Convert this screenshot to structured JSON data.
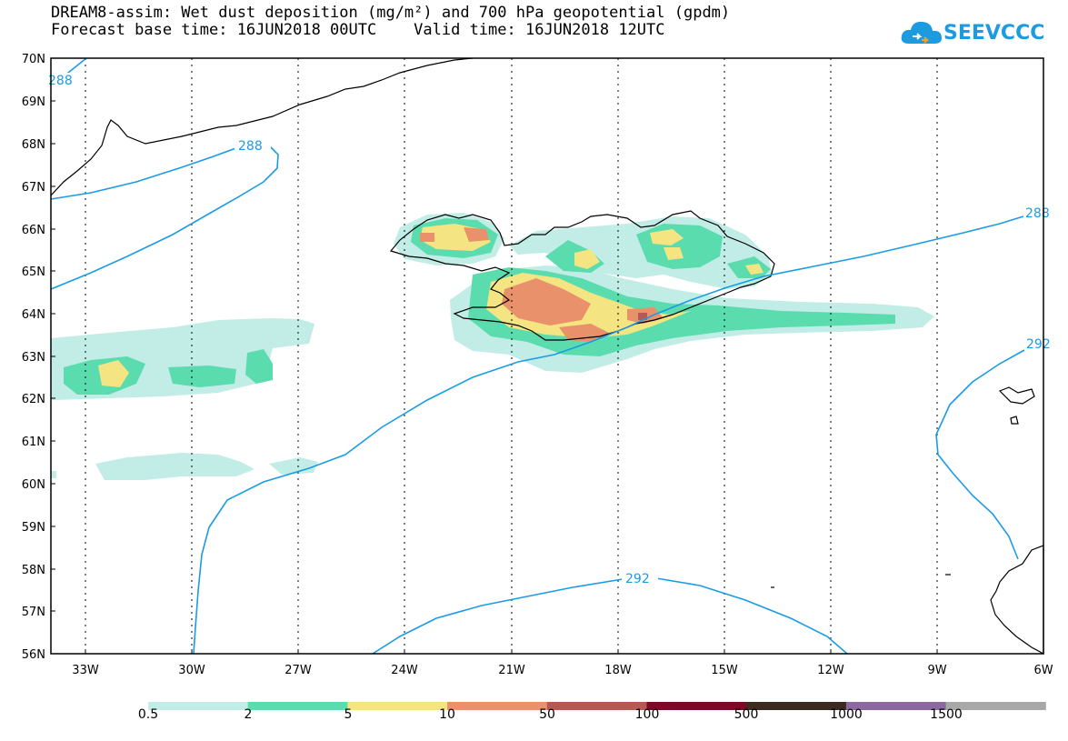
{
  "title": {
    "line1": "DREAM8-assim: Wet dust deposition (mg/m²) and 700 hPa geopotential (gpdm)",
    "line2": "Forecast base time: 16JUN2018 00UTC    Valid time: 16JUN2018 12UTC"
  },
  "logo": {
    "text": "SEEVCCC"
  },
  "axes": {
    "lat_labels": [
      "70N",
      "69N",
      "68N",
      "67N",
      "66N",
      "65N",
      "64N",
      "63N",
      "62N",
      "61N",
      "60N",
      "59N",
      "58N",
      "57N",
      "56N"
    ],
    "lon_labels": [
      "33W",
      "30W",
      "27W",
      "24W",
      "21W",
      "18W",
      "15W",
      "12W",
      "9W",
      "6W"
    ],
    "lat_range": [
      56,
      70
    ],
    "lon_range": [
      -34,
      -6
    ]
  },
  "contours": {
    "color": "#1a9be6",
    "labels": [
      "288",
      "288",
      "288",
      "292",
      "292"
    ]
  },
  "legend": {
    "colors": [
      "#c1ede6",
      "#5bdcae",
      "#f4e582",
      "#e9916a",
      "#b55a53",
      "#7b0a28",
      "#3a2a20",
      "#8b68a0",
      "#a8a8a8"
    ],
    "labels": [
      "0.5",
      "2",
      "5",
      "10",
      "50",
      "100",
      "500",
      "1000",
      "1500"
    ]
  },
  "colors": {
    "level_0_5": "#c1ede6",
    "level_2": "#5bdcae",
    "level_5": "#f4e582",
    "level_10": "#e9916a",
    "coast": "#000000",
    "grid": "#000000"
  }
}
